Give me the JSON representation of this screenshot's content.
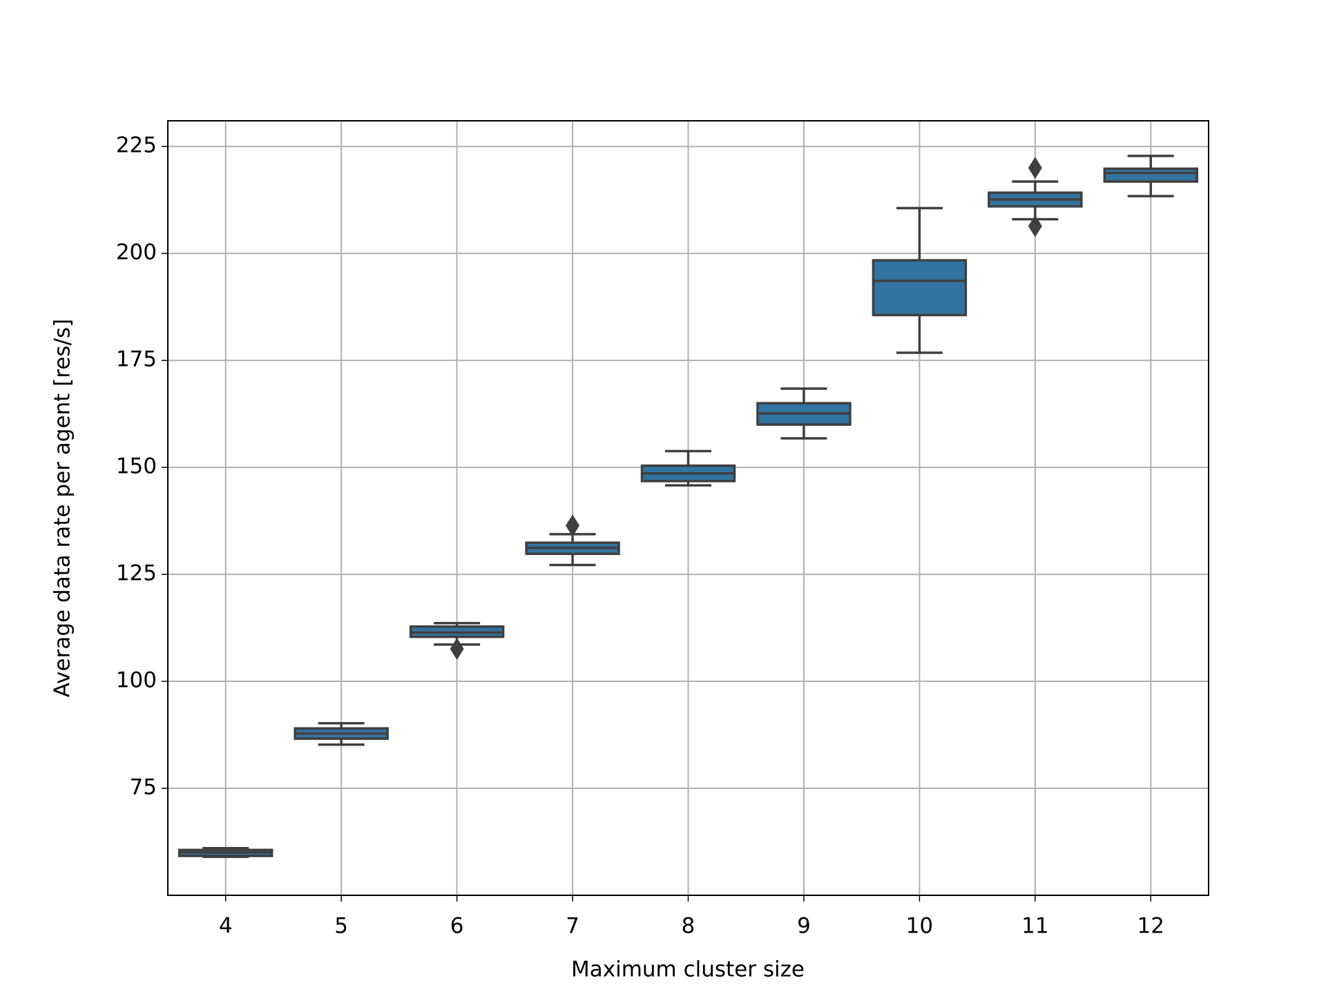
{
  "chart_data": {
    "type": "box",
    "x_label": "Maximum cluster size",
    "y_label": "Average data rate per agent [res/s]",
    "categories": [
      "4",
      "5",
      "6",
      "7",
      "8",
      "9",
      "10",
      "11",
      "12"
    ],
    "boxes": [
      {
        "low": 59,
        "q1": 59.2,
        "median": 60,
        "q3": 60.6,
        "high": 61,
        "outliers": []
      },
      {
        "low": 85.2,
        "q1": 86.6,
        "median": 87.8,
        "q3": 89,
        "high": 90.2,
        "outliers": []
      },
      {
        "low": 108.6,
        "q1": 110.4,
        "median": 111.4,
        "q3": 112.8,
        "high": 113.6,
        "outliers": [
          107.6
        ]
      },
      {
        "low": 127.2,
        "q1": 129.8,
        "median": 131.2,
        "q3": 132.4,
        "high": 134.4,
        "outliers": [
          136.4
        ]
      },
      {
        "low": 145.8,
        "q1": 146.8,
        "median": 148.6,
        "q3": 150.4,
        "high": 153.8,
        "outliers": []
      },
      {
        "low": 156.8,
        "q1": 160,
        "median": 162.6,
        "q3": 165,
        "high": 168.4,
        "outliers": []
      },
      {
        "low": 176.8,
        "q1": 185.6,
        "median": 193.6,
        "q3": 198.4,
        "high": 210.6,
        "outliers": []
      },
      {
        "low": 208,
        "q1": 211,
        "median": 212.6,
        "q3": 214.2,
        "high": 216.8,
        "outliers": [
          220,
          206.4
        ]
      },
      {
        "low": 213.4,
        "q1": 216.8,
        "median": 218.8,
        "q3": 219.8,
        "high": 222.8,
        "outliers": []
      }
    ],
    "color": "#3274a1",
    "edge_color": "#3f3f3f",
    "ylim": [
      50,
      231
    ],
    "yticks": [
      75,
      100,
      125,
      150,
      175,
      200,
      225
    ],
    "grid": true
  }
}
